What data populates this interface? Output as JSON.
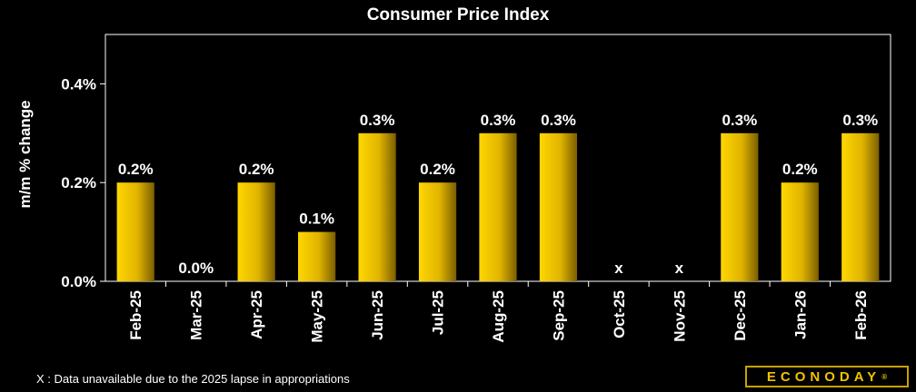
{
  "chart_data": {
    "type": "bar",
    "title": "Consumer Price Index",
    "ylabel": "m/m % change",
    "xlabel": "",
    "ylim": [
      0,
      0.5
    ],
    "yticks": [
      0.0,
      0.2,
      0.4
    ],
    "ytick_labels": [
      "0.0%",
      "0.2%",
      "0.4%"
    ],
    "categories": [
      "Feb-25",
      "Mar-25",
      "Apr-25",
      "May-25",
      "Jun-25",
      "Jul-25",
      "Aug-25",
      "Sep-25",
      "Oct-25",
      "Nov-25",
      "Dec-25",
      "Jan-26",
      "Feb-26"
    ],
    "values": [
      0.2,
      0.0,
      0.2,
      0.1,
      0.3,
      0.2,
      0.3,
      0.3,
      null,
      null,
      0.3,
      0.2,
      0.3
    ],
    "data_labels": [
      "0.2%",
      "0.0%",
      "0.2%",
      "0.1%",
      "0.3%",
      "0.2%",
      "0.3%",
      "0.3%",
      "x",
      "x",
      "0.3%",
      "0.2%",
      "0.3%"
    ],
    "grid": false,
    "bar_color": "#f2c200"
  },
  "footnote": "X : Data unavailable due to the 2025 lapse in appropriations",
  "logo": {
    "text": "ECONODAY",
    "mark": "®"
  }
}
